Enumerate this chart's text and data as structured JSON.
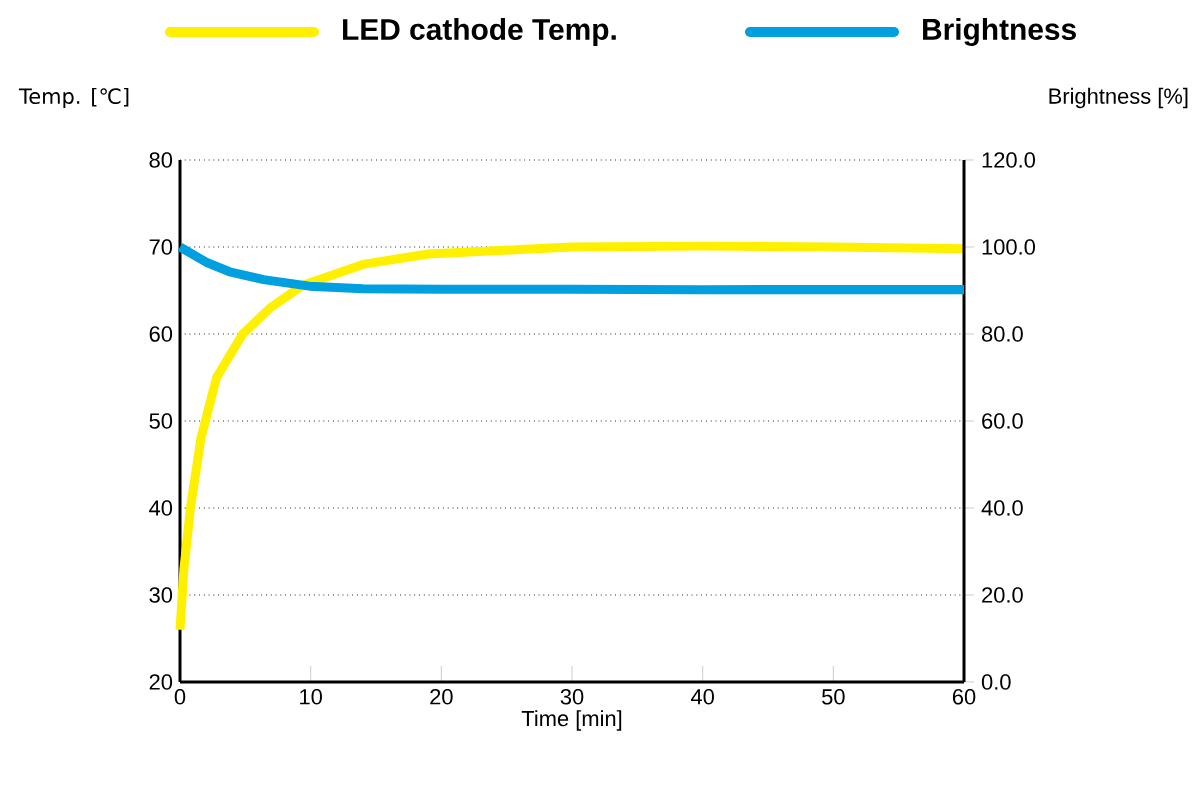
{
  "chart_data": {
    "type": "line",
    "xlabel": "Time [min]",
    "ylabel": "Temp. [℃]",
    "y2label": "Brightness [%]",
    "xlim": [
      0,
      60
    ],
    "xticks": [
      0,
      10,
      20,
      30,
      40,
      50,
      60
    ],
    "ylim": [
      20,
      80
    ],
    "yticks": [
      20,
      30,
      40,
      50,
      60,
      70,
      80
    ],
    "y2lim": [
      0,
      120
    ],
    "y2ticks": [
      {
        "value": 0,
        "label": "0.0"
      },
      {
        "value": 20,
        "label": "20.0"
      },
      {
        "value": 40,
        "label": "40.0"
      },
      {
        "value": 60,
        "label": "60.0"
      },
      {
        "value": 80,
        "label": "80.0"
      },
      {
        "value": 100,
        "label": "100.0"
      },
      {
        "value": 120,
        "label": "120.0"
      }
    ],
    "grid": "y",
    "legend": "top",
    "marker": "none",
    "line_style": "solid",
    "series": [
      {
        "name": "LED cathode Temp.",
        "color": "#fff000",
        "x": [
          0,
          0.3,
          0.8,
          1.6,
          2.8,
          4.8,
          6.9,
          9.4,
          14,
          19,
          26,
          30,
          40,
          50,
          60
        ],
        "values": [
          26,
          33,
          40,
          48,
          55,
          60,
          63,
          65.6,
          68,
          69.2,
          69.7,
          70,
          70.1,
          70,
          69.8
        ]
      },
      {
        "name": "Brightness",
        "color": "#00a0e0",
        "axis": "y2",
        "x": [
          0,
          2,
          3.8,
          6.4,
          9.9,
          14,
          20,
          30,
          40,
          50,
          60
        ],
        "values": [
          100,
          96.5,
          94.3,
          92.5,
          91,
          90.4,
          90.3,
          90.3,
          90.2,
          90.2,
          90.2
        ]
      }
    ]
  }
}
